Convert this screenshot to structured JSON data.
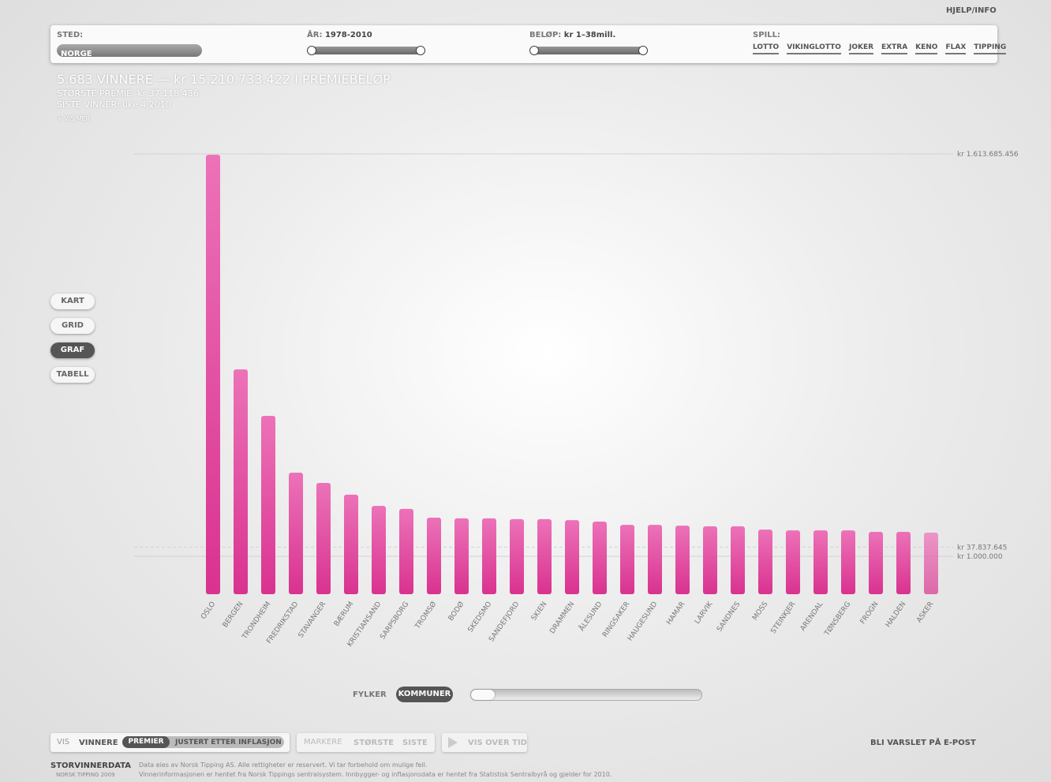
{
  "header": {
    "help": "HJELP/INFO"
  },
  "filters": {
    "place_label": "STED:",
    "place_value": "NORGE",
    "year_label": "ÅR:",
    "year_value": "1978-2010",
    "amount_label": "BELØP:",
    "amount_value": "kr 1–38mill.",
    "games_label": "SPILL:",
    "games": [
      "LOTTO",
      "VIKINGLOTTO",
      "JOKER",
      "EXTRA",
      "KENO",
      "FLAX",
      "TIPPING"
    ]
  },
  "summary": {
    "headline": "5.683 VINNERE — kr 15.210.733.422 I PREMIEBELØP",
    "largest": "STØRSTE PREMIE: kr 37.118.436",
    "latest": "SISTE VINNER: uke 4.2010",
    "more": "+ VIS MER"
  },
  "views": [
    "KART",
    "GRID",
    "GRAF",
    "TABELL"
  ],
  "chart_data": {
    "type": "bar",
    "color": "#d9328f",
    "categories": [
      "OSLO",
      "BERGEN",
      "TRONDHEIM",
      "FREDRIKSTAD",
      "STAVANGER",
      "BÆRUM",
      "KRISTIANSAND",
      "SARPSBORG",
      "TROMSØ",
      "BODØ",
      "SKEDSMO",
      "SANDEFJORD",
      "SKIEN",
      "DRAMMEN",
      "ÅLESUND",
      "RINGSAKER",
      "HAUGESUND",
      "HAMAR",
      "LARVIK",
      "SANDNES",
      "MOSS",
      "STEINKJER",
      "ARENDAL",
      "TØNSBERG",
      "FROGN",
      "HALDEN",
      "ASKER"
    ],
    "values": [
      1610000000,
      750000000,
      564000000,
      336000000,
      295000000,
      248000000,
      203000000,
      191000000,
      156000000,
      153000000,
      153000000,
      150000000,
      150000000,
      146000000,
      140000000,
      127000000,
      127000000,
      124000000,
      121000000,
      121000000,
      108000000,
      105000000,
      105000000,
      105000000,
      99000000,
      99000000,
      96000000
    ],
    "ylim": [
      1000000,
      1613685456
    ],
    "yticks": [
      {
        "value": 1000000,
        "label": "kr 1.000.000"
      },
      {
        "value": 37837645,
        "label": "kr 37.837.645"
      },
      {
        "value": 1613685456,
        "label": "kr 1.613.685.456"
      }
    ],
    "grid": true
  },
  "level": [
    "FYLKER",
    "KOMMUNER"
  ],
  "footer": {
    "vis_label": "VIS",
    "vis_options": [
      "VINNERE",
      "PREMIER",
      "JUSTERT ETTER INFLASJON"
    ],
    "mark_label": "MARKERE",
    "mark_options": [
      "STØRSTE",
      "SISTE"
    ],
    "time": "VIS OVER TID",
    "notify": "BLI VARSLET PÅ E-POST",
    "brand": "STORVINNERDATA",
    "brand_sub": "NORSK TIPPING 2009",
    "notes": [
      "Data eies av Norsk Tipping AS. Alle rettigheter er reservert. Vi tar forbehold om mulige feil.",
      "Vinnerinformasjonen er hentet fra Norsk Tippings sentralsystem. Innbygger- og inflasjonsdata er hentet fra Statistisk Sentralbyrå og gjelder for 2010."
    ]
  }
}
